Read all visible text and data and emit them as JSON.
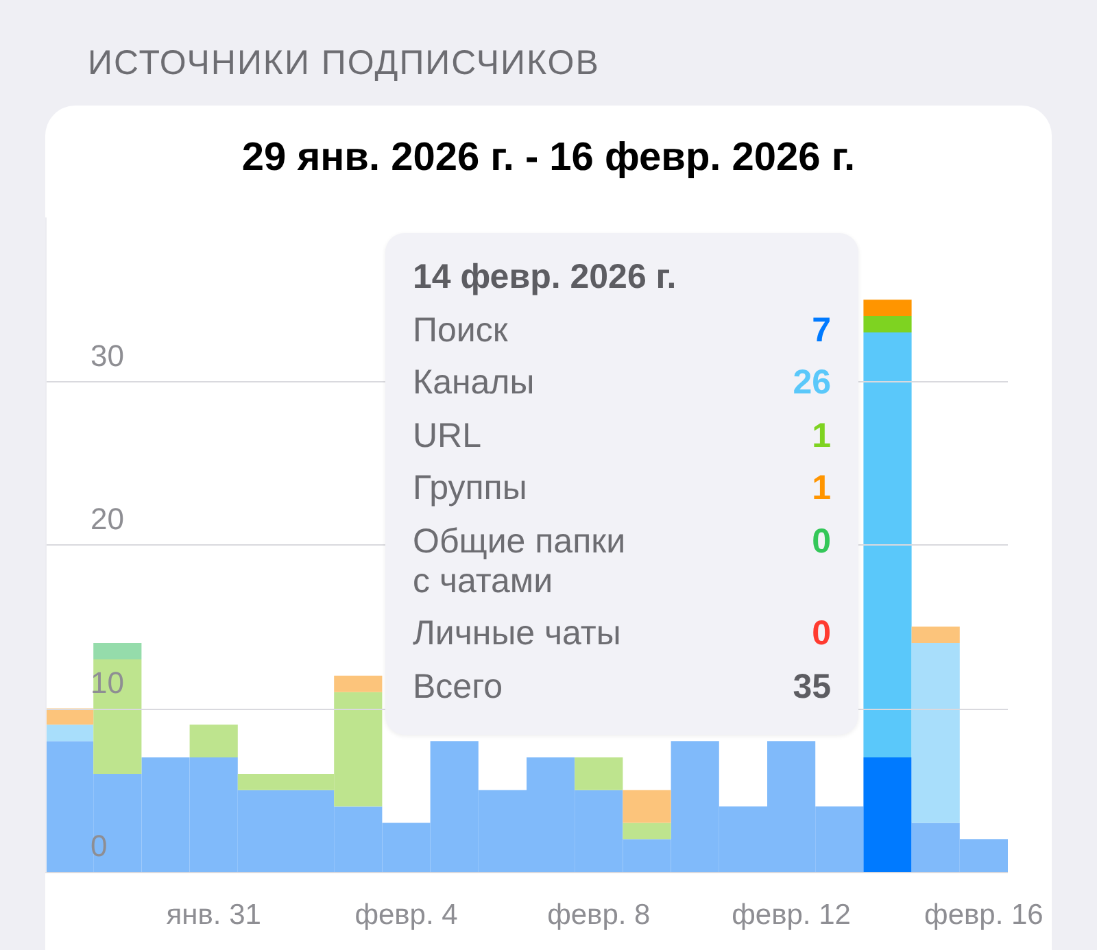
{
  "chart_data": [
    {
      "type": "bar",
      "title": "ИСТОЧНИКИ ПОДПИСЧИКОВ",
      "subtitle": "29 янв. 2026 г. - 16 февр. 2026 г.",
      "categories": [
        null,
        null,
        null,
        "янв. 31",
        null,
        null,
        null,
        "февр. 4",
        null,
        null,
        null,
        "февр. 8",
        null,
        null,
        null,
        "февр. 12",
        null,
        null,
        null,
        "февр. 16"
      ],
      "stacked": true,
      "ylim": [
        0,
        40
      ],
      "yticks": [
        0,
        10,
        20,
        30
      ],
      "grid": "y",
      "series": [
        {
          "values": [
            8,
            6,
            7,
            7,
            5,
            5,
            4,
            3,
            8,
            5,
            7,
            5,
            2,
            8,
            4,
            8,
            4,
            7,
            3,
            2
          ],
          "colors": [
            "#80bafa",
            "#80bafa",
            "#80bafa",
            "#80bafa",
            "#80bafa",
            "#80bafa",
            "#80bafa",
            "#80bafa",
            "#80bafa",
            "#80bafa",
            "#80bafa",
            "#80bafa",
            "#80bafa",
            "#80bafa",
            "#80bafa",
            "#80bafa",
            "#80bafa",
            "#007aff",
            "#80bafa",
            "#80bafa"
          ]
        },
        {
          "values": [
            1,
            0,
            0,
            0,
            0,
            0,
            0,
            0,
            null,
            null,
            0,
            0,
            0,
            null,
            null,
            null,
            0,
            26,
            11,
            0
          ],
          "colors": [
            "#a8defb",
            "#a8defb",
            "#a8defb",
            "#a8defb",
            "#a8defb",
            "#a8defb",
            "#a8defb",
            "#a8defb",
            "#a8defb",
            "#a8defb",
            "#a8defb",
            "#a8defb",
            "#a8defb",
            "#a8defb",
            "#a8defb",
            "#a8defb",
            "#a8defb",
            "#5ac8fa",
            "#a8defb",
            "#a8defb"
          ]
        },
        {
          "values": [
            0,
            7,
            0,
            2,
            1,
            1,
            7,
            null,
            null,
            null,
            null,
            2,
            1,
            null,
            null,
            null,
            0,
            1,
            0,
            0
          ],
          "colors": [
            "#bee48e",
            "#bee48e",
            "#bee48e",
            "#bee48e",
            "#bee48e",
            "#bee48e",
            "#bee48e",
            "#bee48e",
            "#bee48e",
            "#bee48e",
            "#bee48e",
            "#bee48e",
            "#bee48e",
            "#bee48e",
            "#bee48e",
            "#bee48e",
            "#bee48e",
            "#7ed321",
            "#bee48e",
            "#bee48e"
          ]
        },
        {
          "values": [
            1,
            0,
            0,
            0,
            0,
            0,
            1,
            null,
            null,
            null,
            null,
            0,
            2,
            null,
            null,
            null,
            0,
            1,
            1,
            0
          ],
          "colors": [
            "#fcc47b",
            "#fcc47b",
            "#fcc47b",
            "#fcc47b",
            "#fcc47b",
            "#fcc47b",
            "#fcc47b",
            "#fcc47b",
            "#fcc47b",
            "#fcc47b",
            "#fcc47b",
            "#fcc47b",
            "#fcc47b",
            "#fcc47b",
            "#fcc47b",
            "#fcc47b",
            "#fcc47b",
            "#ff9500",
            "#fcc47b",
            "#fcc47b"
          ]
        },
        {
          "values": [
            0,
            1,
            0,
            0,
            0,
            0,
            0,
            null,
            null,
            null,
            null,
            0,
            0,
            null,
            null,
            null,
            0,
            0,
            0,
            0
          ],
          "colors": [
            "#95dcab",
            "#95dcab",
            "#95dcab",
            "#95dcab",
            "#95dcab",
            "#95dcab",
            "#95dcab",
            "#95dcab",
            "#95dcab",
            "#95dcab",
            "#95dcab",
            "#95dcab",
            "#95dcab",
            "#95dcab",
            "#95dcab",
            "#95dcab",
            "#95dcab",
            "#34c759",
            "#95dcab",
            "#95dcab"
          ]
        }
      ]
    },
    {
      "type": "other",
      "title": "14 февр. 2026 г.",
      "categories": [
        "Поиск",
        "Каналы",
        "URL",
        "Группы",
        "Общие папки с чатами",
        "Личные чаты",
        "Всего"
      ],
      "values": [
        7,
        26,
        1,
        1,
        0,
        0,
        35
      ],
      "data_labels": true
    }
  ]
}
